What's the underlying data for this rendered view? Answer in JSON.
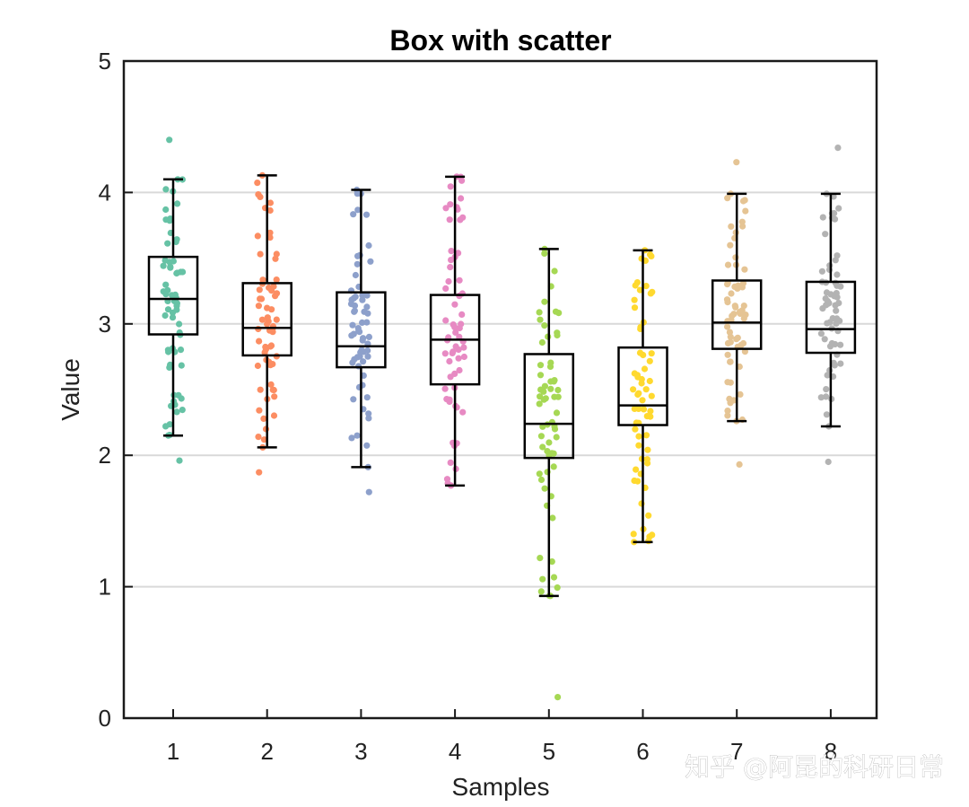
{
  "chart_data": {
    "type": "box",
    "title": "Box with scatter",
    "xlabel": "Samples",
    "ylabel": "Value",
    "ylim": [
      0,
      5
    ],
    "yticks": [
      0,
      1,
      2,
      3,
      4,
      5
    ],
    "grid": "horizontal",
    "categories": [
      "1",
      "2",
      "3",
      "4",
      "5",
      "6",
      "7",
      "8"
    ],
    "boxes": [
      {
        "name": "1",
        "color": "#66c2a5",
        "whisker_low": 2.15,
        "q1": 2.92,
        "median": 3.19,
        "q3": 3.51,
        "whisker_high": 4.1,
        "outliers": [
          4.4,
          1.96
        ]
      },
      {
        "name": "2",
        "color": "#fc8d62",
        "whisker_low": 2.06,
        "q1": 2.76,
        "median": 2.97,
        "q3": 3.31,
        "whisker_high": 4.13,
        "outliers": [
          1.87
        ]
      },
      {
        "name": "3",
        "color": "#8da0cb",
        "whisker_low": 1.91,
        "q1": 2.67,
        "median": 2.83,
        "q3": 3.24,
        "whisker_high": 4.02,
        "outliers": [
          1.72
        ]
      },
      {
        "name": "4",
        "color": "#e78ac3",
        "whisker_low": 1.77,
        "q1": 2.54,
        "median": 2.88,
        "q3": 3.22,
        "whisker_high": 4.12,
        "outliers": []
      },
      {
        "name": "5",
        "color": "#a6d854",
        "whisker_low": 0.93,
        "q1": 1.98,
        "median": 2.24,
        "q3": 2.77,
        "whisker_high": 3.57,
        "outliers": [
          0.16
        ]
      },
      {
        "name": "6",
        "color": "#ffd92f",
        "whisker_low": 1.34,
        "q1": 2.23,
        "median": 2.38,
        "q3": 2.82,
        "whisker_high": 3.56,
        "outliers": []
      },
      {
        "name": "7",
        "color": "#e5c494",
        "whisker_low": 2.26,
        "q1": 2.81,
        "median": 3.01,
        "q3": 3.33,
        "whisker_high": 3.99,
        "outliers": [
          4.23,
          1.93
        ]
      },
      {
        "name": "8",
        "color": "#b3b3b3",
        "whisker_low": 2.22,
        "q1": 2.78,
        "median": 2.96,
        "q3": 3.32,
        "whisker_high": 3.99,
        "outliers": [
          4.34,
          1.95
        ]
      }
    ]
  },
  "watermark": {
    "text": "知乎 @阿昆的科研日常"
  }
}
